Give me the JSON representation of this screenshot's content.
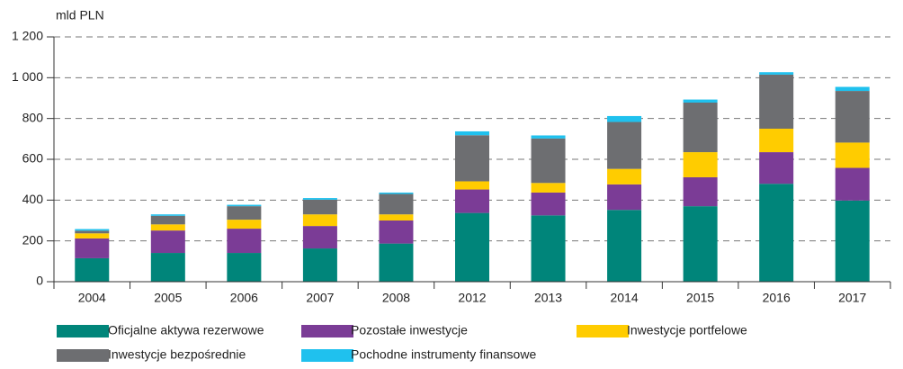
{
  "chart_data": {
    "type": "bar",
    "stacked": true,
    "y_label": "mld PLN",
    "categories": [
      "2004",
      "2005",
      "2006",
      "2007",
      "2008",
      "2012",
      "2013",
      "2014",
      "2015",
      "2016",
      "2017"
    ],
    "series": [
      {
        "name": "Oficjalne aktywa rezerwowe",
        "color": "#00857a",
        "values": [
          115,
          141,
          141,
          163,
          187,
          337,
          325,
          352,
          370,
          480,
          398
        ]
      },
      {
        "name": "Pozostałe inwestycje",
        "color": "#7b3c96",
        "values": [
          97,
          110,
          119,
          110,
          113,
          115,
          112,
          125,
          142,
          155,
          160
        ]
      },
      {
        "name": "Inwestycje portfelowe",
        "color": "#ffcc00",
        "values": [
          25,
          30,
          44,
          57,
          30,
          40,
          47,
          76,
          123,
          115,
          124
        ]
      },
      {
        "name": "Inwestycje bezpośrednie",
        "color": "#6d6e71",
        "values": [
          13,
          42,
          66,
          72,
          100,
          226,
          218,
          230,
          243,
          265,
          253
        ]
      },
      {
        "name": "Pochodne instrumenty finansowe",
        "color": "#1fc1ee",
        "values": [
          8,
          7,
          7,
          8,
          7,
          19,
          15,
          29,
          15,
          12,
          20
        ]
      }
    ],
    "ylim": [
      0,
      1200
    ],
    "yticks": [
      0,
      200,
      400,
      600,
      800,
      {
        "value": 1000,
        "label": "1 000"
      },
      {
        "value": 1200,
        "label": "1 200"
      }
    ],
    "grid": true
  }
}
